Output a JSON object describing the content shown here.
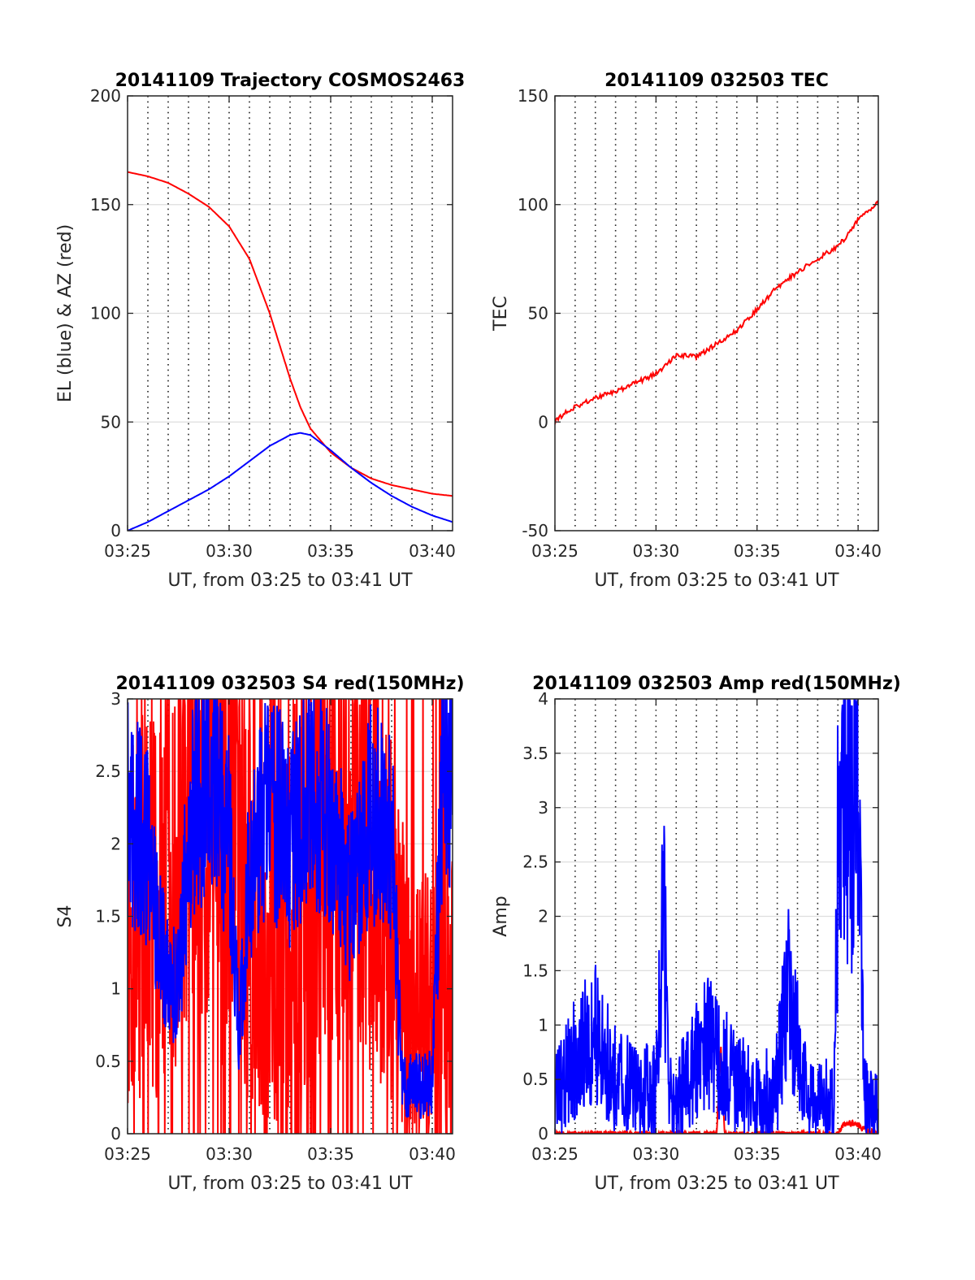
{
  "chart_data": [
    {
      "type": "line",
      "title": "20141109 Trajectory COSMOS2463",
      "xlabel": "UT, from 03:25 to 03:41 UT",
      "ylabel": "EL (blue) & AZ (red)",
      "xlim": [
        0,
        16
      ],
      "ylim": [
        0,
        200
      ],
      "yticks": [
        0,
        50,
        100,
        150,
        200
      ],
      "xticks": [
        {
          "v": 0,
          "label": "03:25"
        },
        {
          "v": 5,
          "label": "03:30"
        },
        {
          "v": 10,
          "label": "03:35"
        },
        {
          "v": 15,
          "label": "03:40"
        }
      ],
      "grid": true,
      "series": [
        {
          "color": "#ff0000",
          "x": [
            0,
            1,
            2,
            3,
            4,
            5,
            6,
            7,
            7.5,
            8,
            8.5,
            9,
            10,
            11,
            12,
            13,
            14,
            15,
            16
          ],
          "y": [
            165,
            163,
            160,
            155,
            149,
            140,
            125,
            100,
            85,
            70,
            57,
            47,
            36,
            29,
            24,
            21,
            19,
            17,
            16
          ]
        },
        {
          "color": "#0000ff",
          "x": [
            0,
            1,
            2,
            3,
            4,
            5,
            6,
            7,
            8,
            8.5,
            9,
            10,
            11,
            12,
            13,
            14,
            15,
            16
          ],
          "y": [
            0,
            4,
            9,
            14,
            19,
            25,
            32,
            39,
            44,
            45,
            44,
            37,
            29,
            22,
            16,
            11,
            7,
            4
          ]
        }
      ]
    },
    {
      "type": "line",
      "title": "20141109 032503 TEC",
      "xlabel": "UT, from 03:25 to 03:41 UT",
      "ylabel": "TEC",
      "xlim": [
        0,
        16
      ],
      "ylim": [
        -50,
        150
      ],
      "yticks": [
        -50,
        0,
        50,
        100,
        150
      ],
      "xticks": [
        {
          "v": 0,
          "label": "03:25"
        },
        {
          "v": 5,
          "label": "03:30"
        },
        {
          "v": 10,
          "label": "03:35"
        },
        {
          "v": 15,
          "label": "03:40"
        }
      ],
      "grid": true,
      "series": [
        {
          "color": "#ff0000",
          "x": [
            0,
            0.5,
            1,
            2,
            3,
            4,
            5,
            5.5,
            6,
            7,
            7.5,
            8,
            9,
            10,
            11,
            12,
            13,
            14,
            14.5,
            15,
            15.5,
            16
          ],
          "y": [
            0,
            4,
            7,
            11,
            14,
            18,
            22,
            26,
            31,
            30,
            33,
            36,
            42,
            52,
            62,
            69,
            75,
            81,
            86,
            93,
            97,
            101
          ]
        }
      ]
    },
    {
      "type": "line",
      "title": "20141109 032503 S4 red(150MHz)",
      "xlabel": "UT, from 03:25 to 03:41 UT",
      "ylabel": "S4",
      "xlim": [
        0,
        16
      ],
      "ylim": [
        0,
        3
      ],
      "yticks": [
        0,
        0.5,
        1,
        1.5,
        2,
        2.5,
        3
      ],
      "xticks": [
        {
          "v": 0,
          "label": "03:25"
        },
        {
          "v": 5,
          "label": "03:30"
        },
        {
          "v": 10,
          "label": "03:35"
        },
        {
          "v": 15,
          "label": "03:40"
        }
      ],
      "grid": true,
      "series": [
        {
          "color": "#ff0000",
          "noise": 1.0,
          "x": [
            0,
            1,
            2,
            3,
            4,
            5,
            6,
            7,
            8,
            9,
            10,
            11,
            12,
            13,
            14,
            15,
            16
          ],
          "y": [
            1.5,
            1.6,
            1.5,
            2.2,
            2.5,
            2.0,
            1.5,
            0.8,
            1.5,
            2.0,
            2.2,
            1.8,
            2.0,
            1.5,
            0.8,
            1.0,
            1.5
          ]
        },
        {
          "color": "#0000ff",
          "noise": 0.45,
          "x": [
            0,
            1,
            1.5,
            2,
            2.5,
            3,
            4,
            5,
            5.5,
            6,
            7,
            8,
            9,
            10,
            11,
            12,
            13,
            13.5,
            14,
            15,
            15.5,
            16
          ],
          "y": [
            2.3,
            2.0,
            1.4,
            1.1,
            1.0,
            2.1,
            2.6,
            2.0,
            0.7,
            1.8,
            2.3,
            2.0,
            2.4,
            2.1,
            1.6,
            2.2,
            2.1,
            0.35,
            0.33,
            0.35,
            2.5,
            2.6
          ]
        }
      ]
    },
    {
      "type": "line",
      "title": "20141109 032503 Amp red(150MHz)",
      "xlabel": "UT, from 03:25 to 03:41 UT",
      "ylabel": "Amp",
      "xlim": [
        0,
        16
      ],
      "ylim": [
        0,
        4
      ],
      "yticks": [
        0,
        0.5,
        1,
        1.5,
        2,
        2.5,
        3,
        3.5,
        4
      ],
      "xticks": [
        {
          "v": 0,
          "label": "03:25"
        },
        {
          "v": 5,
          "label": "03:30"
        },
        {
          "v": 10,
          "label": "03:35"
        },
        {
          "v": 15,
          "label": "03:40"
        }
      ],
      "grid": true,
      "series": [
        {
          "color": "#ff0000",
          "noise": 0.08,
          "x": [
            0,
            8,
            8.2,
            8.4,
            14,
            14.4,
            14.6,
            15,
            15.2,
            16
          ],
          "y": [
            0,
            0,
            0.8,
            0,
            0,
            0.1,
            0.1,
            0.08,
            0.05,
            0
          ]
        },
        {
          "color": "#0000ff",
          "noise": 0.9,
          "x": [
            0,
            1,
            2,
            3,
            4,
            5,
            5.4,
            5.6,
            6,
            7,
            7.5,
            8,
            9,
            10,
            11,
            11.5,
            12,
            12.5,
            13,
            13.8,
            14,
            14.5,
            15,
            15.3,
            16
          ],
          "y": [
            0.3,
            0.7,
            0.9,
            0.5,
            0.4,
            0.4,
            2.1,
            0.4,
            0.3,
            0.7,
            0.9,
            0.7,
            0.5,
            0.3,
            0.5,
            1.3,
            0.8,
            0.3,
            0.3,
            0.3,
            2.6,
            3.0,
            2.8,
            0.3,
            0.2
          ]
        }
      ]
    }
  ]
}
